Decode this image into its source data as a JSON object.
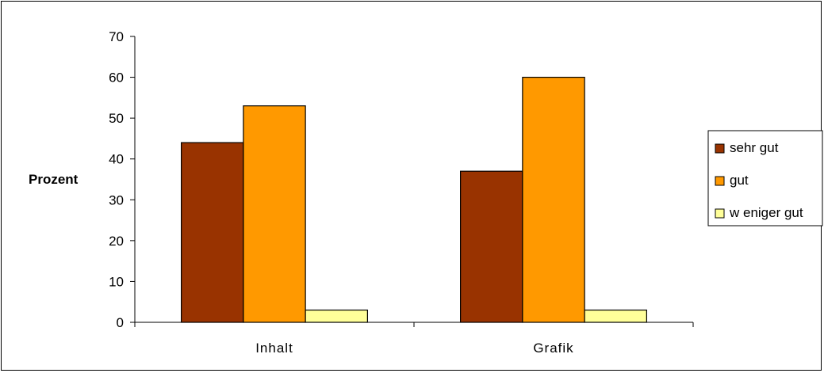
{
  "chart_data": {
    "type": "bar",
    "title": "",
    "xlabel": "",
    "ylabel": "Prozent",
    "categories": [
      "Inhalt",
      "Grafik"
    ],
    "series": [
      {
        "name": "sehr gut",
        "values": [
          44,
          37
        ],
        "color": "#993300"
      },
      {
        "name": "gut",
        "values": [
          53,
          60
        ],
        "color": "#FF9900"
      },
      {
        "name": "w eniger gut",
        "values": [
          3,
          3
        ],
        "color": "#FFFF99"
      }
    ],
    "ylim": [
      0,
      70
    ],
    "yticks": [
      0,
      10,
      20,
      30,
      40,
      50,
      60,
      70
    ],
    "grid": false,
    "legend_position": "right"
  }
}
